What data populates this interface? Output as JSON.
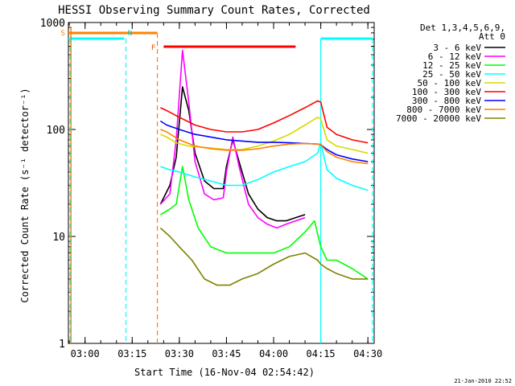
{
  "chart_data": {
    "type": "line",
    "title": "HESSI Observing Summary Count Rates, Corrected",
    "xlabel": "Start Time (16-Nov-04 02:54:42)",
    "ylabel": "Corrected Count Rate (s⁻¹ detector⁻¹)",
    "y_scale": "log",
    "ylim": [
      1,
      1000
    ],
    "xlim": [
      "02:54:42",
      "04:32:00"
    ],
    "x_ticks": [
      "03:00",
      "03:15",
      "03:30",
      "03:45",
      "04:00",
      "04:15",
      "04:30"
    ],
    "y_ticks": [
      "1",
      "10",
      "100",
      "1000"
    ],
    "legend": {
      "position": "top-right",
      "header": [
        "Det 1,3,4,5,6,9,",
        "Att 0"
      ]
    },
    "footer_date": "21-Jan-2010 22:52",
    "state_markers": [
      {
        "label": "S",
        "x": "02:55:00"
      },
      {
        "label": "N",
        "x": "03:13:00"
      },
      {
        "label": "F",
        "x": "03:23:00"
      }
    ],
    "series": [
      {
        "name": "3 - 6 keV",
        "color": "#000000",
        "x": [
          "03:24",
          "03:27",
          "03:29",
          "03:31",
          "03:33",
          "03:35",
          "03:38",
          "03:41",
          "03:44",
          "03:45",
          "03:47",
          "03:49",
          "03:52",
          "03:55",
          "03:58",
          "04:01",
          "04:04",
          "04:07",
          "04:10"
        ],
        "y": [
          20,
          30,
          55,
          250,
          150,
          60,
          33,
          28,
          28,
          45,
          80,
          50,
          25,
          18,
          15,
          14,
          14,
          15,
          16
        ]
      },
      {
        "name": "6 - 12 keV",
        "color": "#ff00ff",
        "x": [
          "03:24",
          "03:27",
          "03:29",
          "03:31",
          "03:33",
          "03:35",
          "03:38",
          "03:41",
          "03:44",
          "03:45",
          "03:47",
          "03:49",
          "03:52",
          "03:55",
          "03:58",
          "04:01",
          "04:04",
          "04:07",
          "04:10"
        ],
        "y": [
          20,
          25,
          80,
          550,
          180,
          50,
          25,
          22,
          23,
          40,
          85,
          45,
          20,
          15,
          13,
          12,
          13,
          14,
          15
        ]
      },
      {
        "name": "12 - 25 keV",
        "color": "#00ff00",
        "x": [
          "03:24",
          "03:27",
          "03:29",
          "03:31",
          "03:33",
          "03:36",
          "03:40",
          "03:45",
          "03:50",
          "03:55",
          "04:00",
          "04:05",
          "04:10",
          "04:13",
          "04:15",
          "04:17",
          "04:20",
          "04:25",
          "04:30"
        ],
        "y": [
          16,
          18,
          20,
          45,
          22,
          12,
          8,
          7,
          7,
          7,
          7,
          8,
          11,
          14,
          8,
          6,
          6,
          5,
          4
        ]
      },
      {
        "name": "25 - 50 keV",
        "color": "#00ffff",
        "x": [
          "03:24",
          "03:27",
          "03:30",
          "03:35",
          "03:40",
          "03:45",
          "03:50",
          "03:55",
          "04:00",
          "04:05",
          "04:10",
          "04:14",
          "04:15",
          "04:17",
          "04:20",
          "04:25",
          "04:30"
        ],
        "y": [
          45,
          42,
          40,
          36,
          33,
          30,
          30,
          34,
          40,
          45,
          50,
          60,
          75,
          42,
          35,
          30,
          27
        ]
      },
      {
        "name": "50 - 100 keV",
        "color": "#d8d800",
        "x": [
          "03:24",
          "03:26",
          "03:29",
          "03:33",
          "03:38",
          "03:45",
          "03:50",
          "03:55",
          "04:00",
          "04:05",
          "04:10",
          "04:14",
          "04:15",
          "04:17",
          "04:20",
          "04:25",
          "04:30"
        ],
        "y": [
          90,
          85,
          75,
          70,
          68,
          65,
          65,
          70,
          78,
          90,
          110,
          130,
          125,
          80,
          70,
          65,
          60
        ]
      },
      {
        "name": "100 - 300 keV",
        "color": "#ff0000",
        "x": [
          "03:24",
          "03:26",
          "03:30",
          "03:35",
          "03:40",
          "03:45",
          "03:50",
          "03:55",
          "04:00",
          "04:05",
          "04:10",
          "04:14",
          "04:15",
          "04:17",
          "04:20",
          "04:25",
          "04:30"
        ],
        "y": [
          160,
          150,
          130,
          110,
          100,
          95,
          95,
          100,
          115,
          135,
          160,
          185,
          180,
          105,
          90,
          80,
          75
        ]
      },
      {
        "name": "300 - 800 keV",
        "color": "#0000ff",
        "x": [
          "03:24",
          "03:26",
          "03:30",
          "03:35",
          "03:40",
          "03:45",
          "03:50",
          "03:55",
          "04:00",
          "04:05",
          "04:10",
          "04:14",
          "04:15",
          "04:17",
          "04:20",
          "04:25",
          "04:30"
        ],
        "y": [
          120,
          110,
          100,
          90,
          85,
          80,
          78,
          76,
          76,
          75,
          74,
          73,
          72,
          65,
          58,
          53,
          50
        ]
      },
      {
        "name": "800 - 7000 keV",
        "color": "#ff8000",
        "x": [
          "03:24",
          "03:26",
          "03:30",
          "03:35",
          "03:40",
          "03:45",
          "03:50",
          "03:55",
          "04:00",
          "04:05",
          "04:10",
          "04:14",
          "04:15",
          "04:17",
          "04:20",
          "04:25",
          "04:30"
        ],
        "y": [
          100,
          95,
          80,
          70,
          66,
          64,
          64,
          66,
          70,
          73,
          74,
          73,
          72,
          62,
          55,
          50,
          48
        ]
      },
      {
        "name": "7000 - 20000 keV",
        "color": "#808000",
        "x": [
          "03:24",
          "03:27",
          "03:30",
          "03:34",
          "03:38",
          "03:42",
          "03:46",
          "03:50",
          "03:55",
          "04:00",
          "04:05",
          "04:10",
          "04:14",
          "04:15",
          "04:17",
          "04:20",
          "04:25",
          "04:30"
        ],
        "y": [
          12,
          10,
          8,
          6,
          4,
          3.5,
          3.5,
          4,
          4.5,
          5.5,
          6.5,
          7,
          6,
          5.5,
          5,
          4.5,
          4,
          4
        ]
      }
    ]
  }
}
